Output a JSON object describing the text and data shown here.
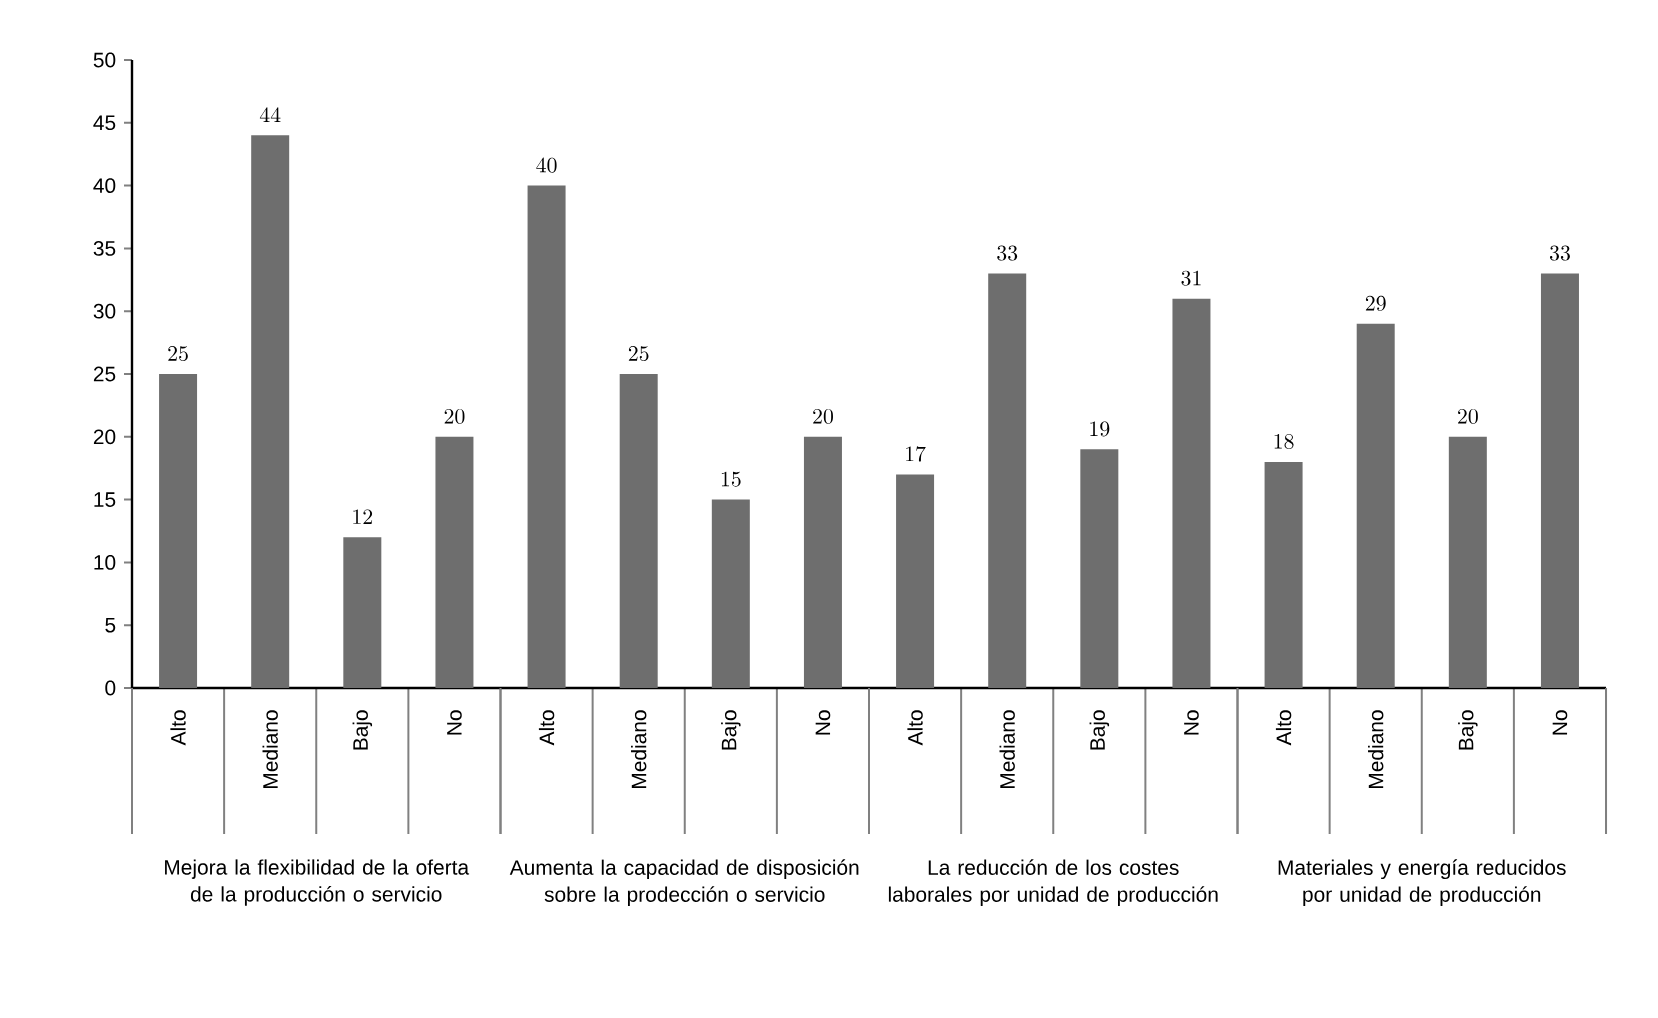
{
  "chart_data": {
    "type": "bar",
    "categories": [
      "Alto",
      "Mediano",
      "Bajo",
      "No",
      "Alto",
      "Mediano",
      "Bajo",
      "No",
      "Alto",
      "Mediano",
      "Bajo",
      "No",
      "Alto",
      "Mediano",
      "Bajo",
      "No"
    ],
    "values": [
      25,
      44,
      12,
      20,
      40,
      25,
      15,
      20,
      17,
      33,
      19,
      31,
      18,
      29,
      20,
      33
    ],
    "color": "#6e6e6e",
    "ylim": [
      0,
      50
    ],
    "yticks": [
      0,
      5,
      10,
      15,
      20,
      25,
      30,
      35,
      40,
      45,
      50
    ],
    "data_labels": true,
    "annotations": [
      "Mejora la flexibilidad de la oferta de la producción o servicio",
      "Aumenta la capacidad de disposición sobre la prodección o servicio",
      "La reducción de los costes laborales por unidad de producción",
      "Materiales y energía reducidos por unidad de producción"
    ]
  }
}
